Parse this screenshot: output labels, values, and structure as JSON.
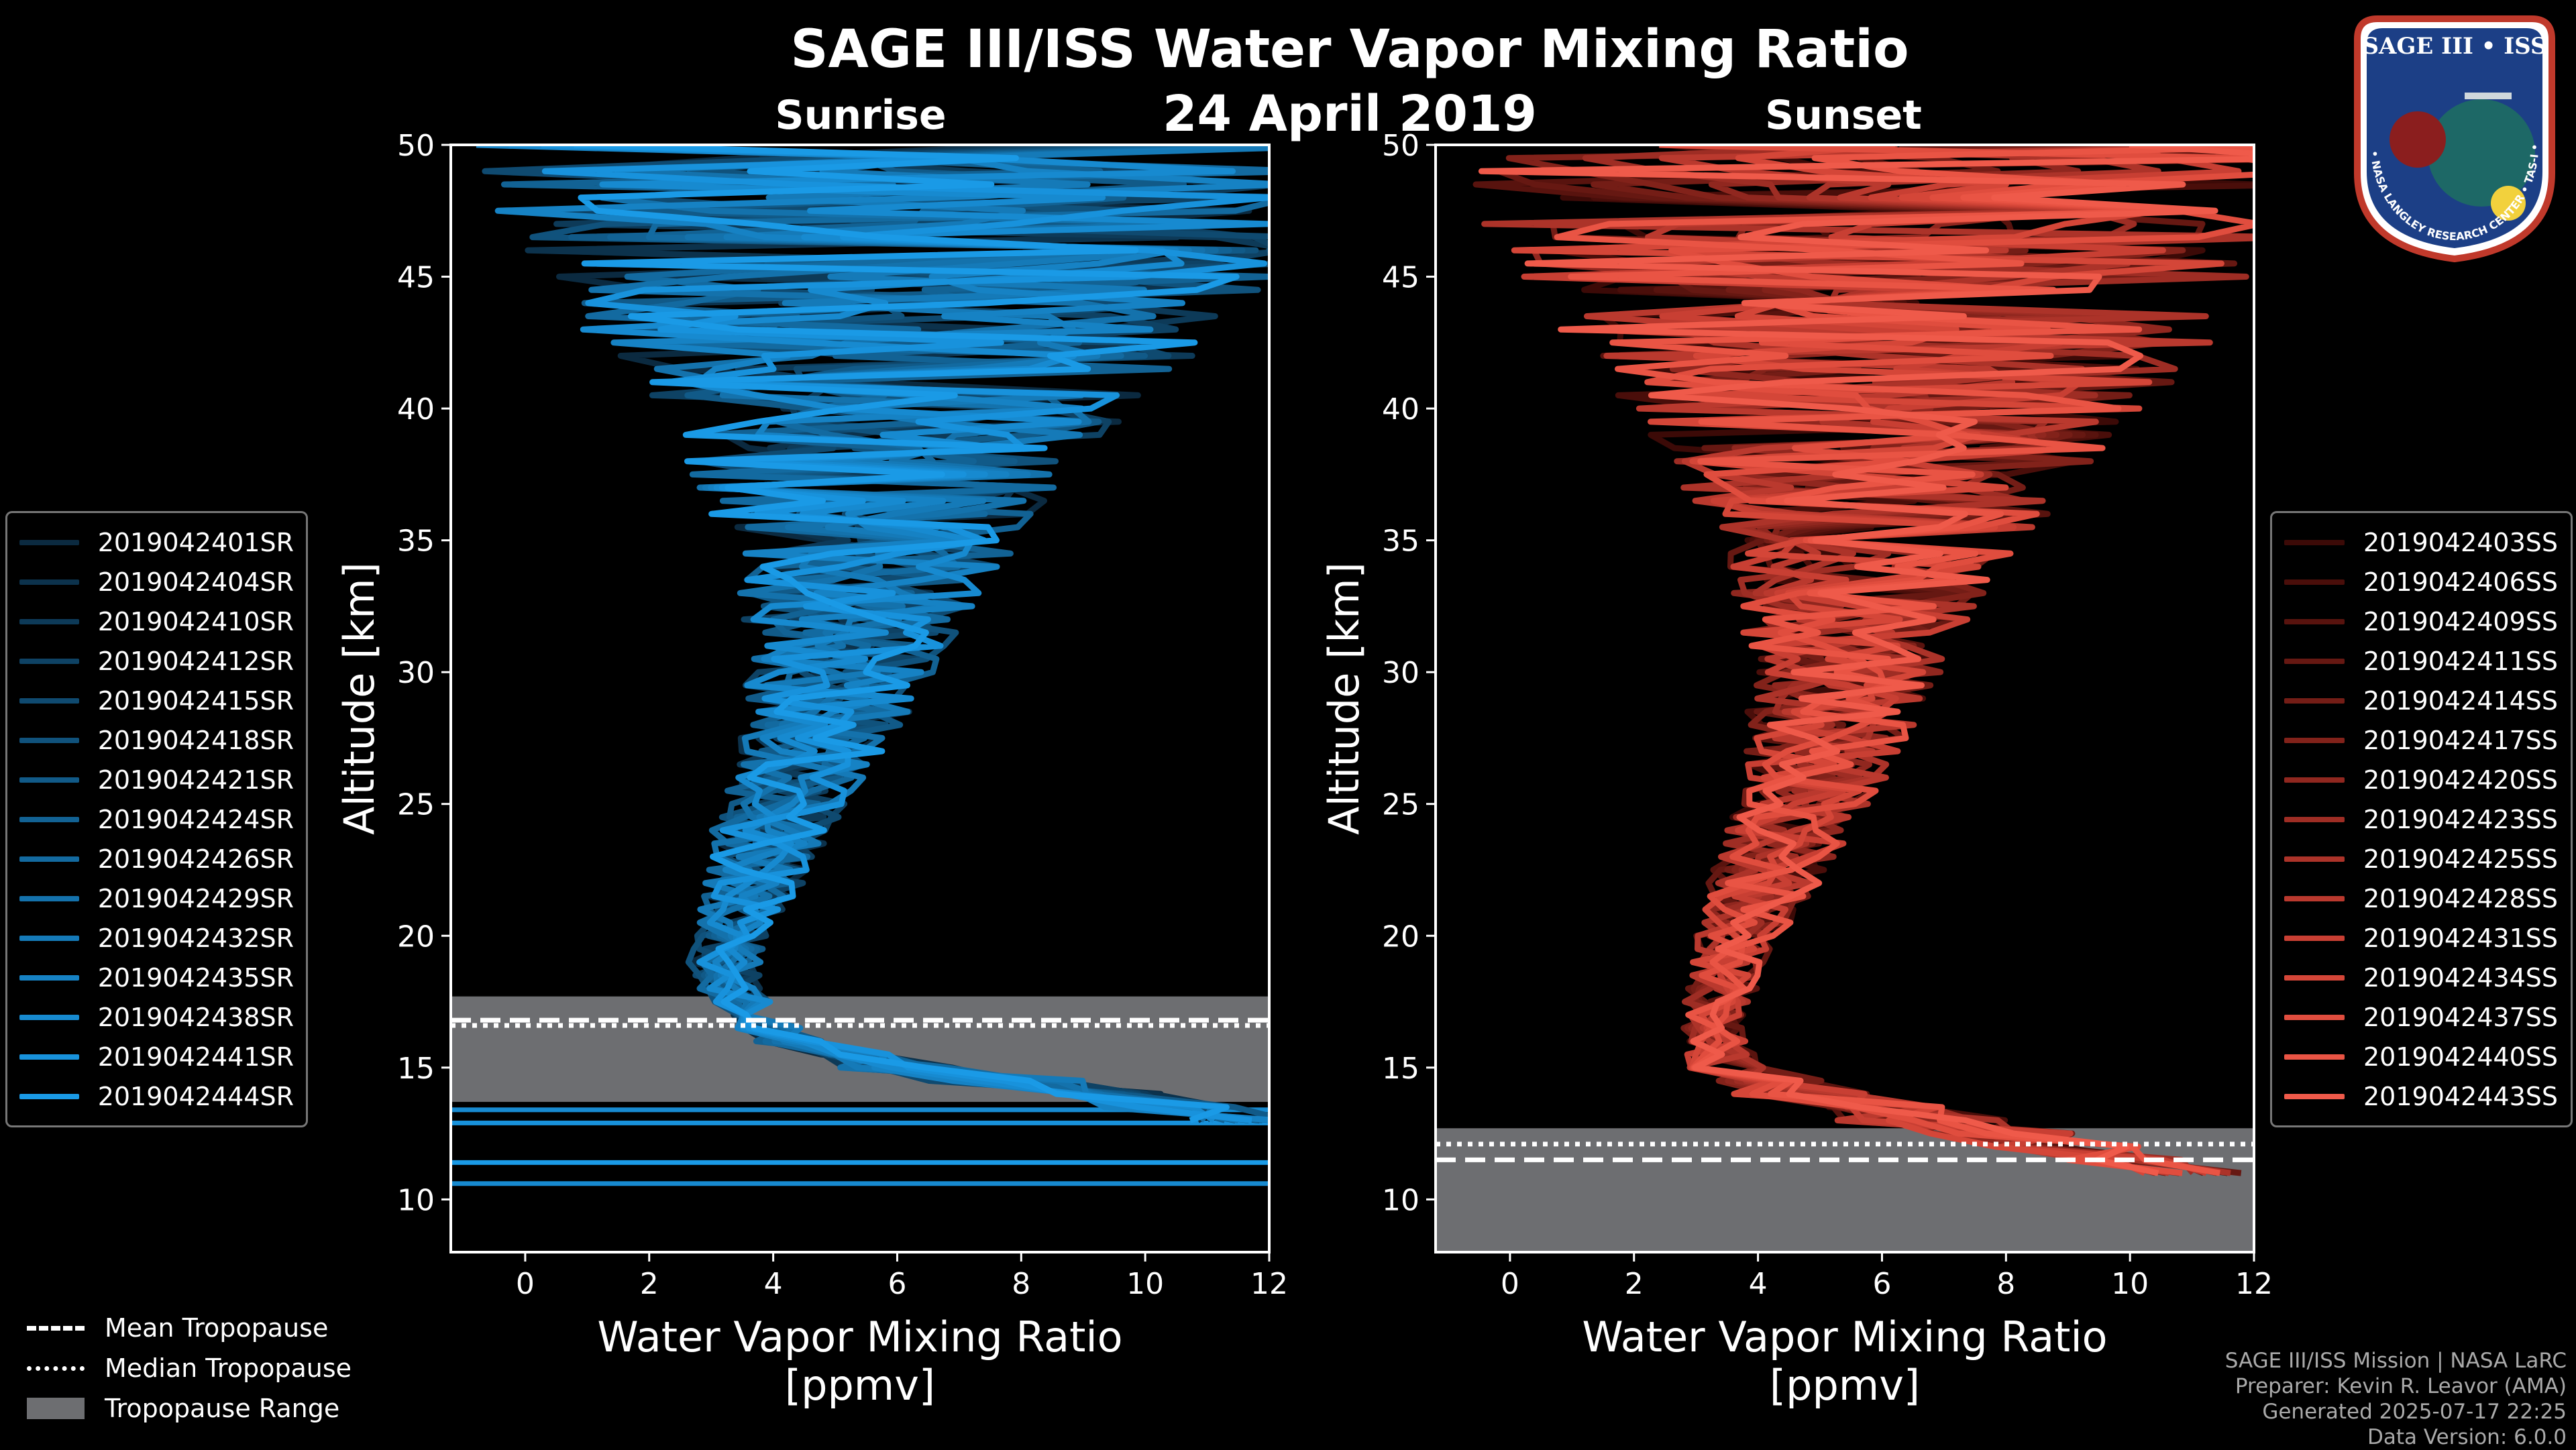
{
  "figure": {
    "title": "SAGE III/ISS Water Vapor Mixing Ratio",
    "date": "24 April 2019",
    "left_subtitle": "Sunrise",
    "right_subtitle": "Sunset"
  },
  "badge": {
    "top_text": "SAGE III • ISS",
    "ring_text": "BALL • NASA LANGLEY RESEARCH CENTER • TAS-I • ESA"
  },
  "chart_data": [
    {
      "type": "line",
      "name": "Sunrise",
      "title": "Sunrise",
      "xlabel": "Water Vapor Mixing Ratio [ppmv]",
      "ylabel": "Altitude [km]",
      "xlim": [
        -1.2,
        12
      ],
      "ylim": [
        8,
        50
      ],
      "xticks": [
        0,
        2,
        4,
        6,
        8,
        10,
        12
      ],
      "yticks": [
        10,
        15,
        20,
        25,
        30,
        35,
        40,
        45,
        50
      ],
      "tropopause": {
        "mean": 16.8,
        "median": 16.6,
        "range": [
          13.7,
          17.7
        ]
      },
      "extra_levels": [
        13.4,
        12.9,
        11.4,
        10.6
      ],
      "profile": {
        "altitude": [
          13,
          14,
          15,
          16,
          17,
          18,
          19,
          20,
          21,
          22,
          23,
          24,
          25,
          26,
          27,
          28,
          29,
          30,
          31,
          32,
          33,
          34,
          35,
          36,
          37,
          38,
          39,
          40,
          41,
          42,
          43,
          44,
          45,
          46,
          47,
          48,
          49,
          50
        ],
        "mean": [
          11.5,
          9.5,
          6.0,
          4.2,
          3.6,
          3.3,
          3.2,
          3.3,
          3.5,
          3.7,
          3.9,
          4.0,
          4.2,
          4.4,
          4.6,
          4.8,
          4.9,
          5.1,
          5.2,
          5.3,
          5.4,
          5.5,
          5.6,
          5.6,
          5.7,
          5.7,
          5.8,
          5.9,
          6.0,
          6.0,
          6.1,
          6.1,
          6.2,
          6.2,
          6.2,
          6.3,
          6.3,
          6.3
        ],
        "spread": [
          0.8,
          1.5,
          1.0,
          0.6,
          0.5,
          0.5,
          0.6,
          0.6,
          0.7,
          0.8,
          0.9,
          1.0,
          1.0,
          1.1,
          1.2,
          1.3,
          1.4,
          1.5,
          1.6,
          1.8,
          2.0,
          2.2,
          2.4,
          2.6,
          2.9,
          3.2,
          3.6,
          4.0,
          4.4,
          4.8,
          5.2,
          5.6,
          6.0,
          6.3,
          6.6,
          6.9,
          7.2,
          7.5
        ]
      },
      "series": [
        {
          "name": "2019042401SR",
          "color": "#0b2a40"
        },
        {
          "name": "2019042404SR",
          "color": "#0c324c"
        },
        {
          "name": "2019042410SR",
          "color": "#0d3a58"
        },
        {
          "name": "2019042412SR",
          "color": "#0e4264"
        },
        {
          "name": "2019042415SR",
          "color": "#0f4a70"
        },
        {
          "name": "2019042418SR",
          "color": "#10527c"
        },
        {
          "name": "2019042421SR",
          "color": "#115a88"
        },
        {
          "name": "2019042424SR",
          "color": "#126294"
        },
        {
          "name": "2019042426SR",
          "color": "#136aa0"
        },
        {
          "name": "2019042429SR",
          "color": "#1472ac"
        },
        {
          "name": "2019042432SR",
          "color": "#157ab8"
        },
        {
          "name": "2019042435SR",
          "color": "#1682c4"
        },
        {
          "name": "2019042438SR",
          "color": "#178ad0"
        },
        {
          "name": "2019042441SR",
          "color": "#1892dc"
        },
        {
          "name": "2019042444SR",
          "color": "#1a9ae6"
        }
      ]
    },
    {
      "type": "line",
      "name": "Sunset",
      "title": "Sunset",
      "xlabel": "Water Vapor Mixing Ratio [ppmv]",
      "ylabel": "Altitude [km]",
      "xlim": [
        -1.2,
        12
      ],
      "ylim": [
        8,
        50
      ],
      "xticks": [
        0,
        2,
        4,
        6,
        8,
        10,
        12
      ],
      "yticks": [
        10,
        15,
        20,
        25,
        30,
        35,
        40,
        45,
        50
      ],
      "tropopause": {
        "mean": 11.5,
        "median": 12.1,
        "range": [
          8,
          12.7
        ]
      },
      "extra_levels": [],
      "profile": {
        "altitude": [
          11,
          12,
          13,
          14,
          15,
          16,
          17,
          18,
          19,
          20,
          21,
          22,
          23,
          24,
          25,
          26,
          27,
          28,
          29,
          30,
          31,
          32,
          33,
          34,
          35,
          36,
          37,
          38,
          39,
          40,
          41,
          42,
          43,
          44,
          45,
          46,
          47,
          48,
          49,
          50
        ],
        "mean": [
          11.0,
          9.0,
          6.5,
          4.8,
          3.5,
          3.3,
          3.3,
          3.4,
          3.5,
          3.7,
          3.9,
          4.1,
          4.3,
          4.5,
          4.7,
          4.9,
          5.0,
          5.2,
          5.3,
          5.4,
          5.5,
          5.6,
          5.7,
          5.8,
          5.8,
          5.9,
          5.9,
          6.0,
          6.0,
          6.1,
          6.1,
          6.2,
          6.2,
          6.2,
          6.3,
          6.3,
          6.3,
          6.3,
          6.4,
          6.4
        ],
        "spread": [
          0.8,
          1.2,
          1.5,
          1.2,
          0.6,
          0.5,
          0.5,
          0.6,
          0.6,
          0.7,
          0.8,
          0.9,
          1.0,
          1.0,
          1.1,
          1.2,
          1.3,
          1.4,
          1.5,
          1.6,
          1.7,
          1.9,
          2.1,
          2.3,
          2.5,
          2.8,
          3.1,
          3.4,
          3.8,
          4.2,
          4.6,
          5.0,
          5.4,
          5.8,
          6.2,
          6.5,
          6.8,
          7.1,
          7.4,
          7.6
        ]
      },
      "series": [
        {
          "name": "2019042403SS",
          "color": "#3c0a07"
        },
        {
          "name": "2019042406SS",
          "color": "#4a0e0a"
        },
        {
          "name": "2019042409SS",
          "color": "#58130e"
        },
        {
          "name": "2019042411SS",
          "color": "#661812"
        },
        {
          "name": "2019042414SS",
          "color": "#741d16"
        },
        {
          "name": "2019042417SS",
          "color": "#82221a"
        },
        {
          "name": "2019042420SS",
          "color": "#90271f"
        },
        {
          "name": "2019042423SS",
          "color": "#9e2d24"
        },
        {
          "name": "2019042425SS",
          "color": "#ac3329"
        },
        {
          "name": "2019042428SS",
          "color": "#ba392e"
        },
        {
          "name": "2019042431SS",
          "color": "#c83f33"
        },
        {
          "name": "2019042434SS",
          "color": "#d44638"
        },
        {
          "name": "2019042437SS",
          "color": "#e04d3e"
        },
        {
          "name": "2019042440SS",
          "color": "#e95444"
        },
        {
          "name": "2019042443SS",
          "color": "#ef5a4a"
        }
      ]
    }
  ],
  "bottom_legend": [
    {
      "label": "Mean Tropopause",
      "style": "dashed"
    },
    {
      "label": "Median Tropopause",
      "style": "dotted"
    },
    {
      "label": "Tropopause Range",
      "style": "patch"
    }
  ],
  "credits": {
    "line1": "SAGE III/ISS Mission | NASA LaRC",
    "line2": "Preparer: Kevin R. Leavor (AMA)",
    "line3": "Generated 2025-07-17 22:25",
    "line4": "Data Version: 6.0.0"
  },
  "colors": {
    "background": "#000000",
    "tropo_fill": "#6d6e71",
    "axis": "#ffffff"
  }
}
